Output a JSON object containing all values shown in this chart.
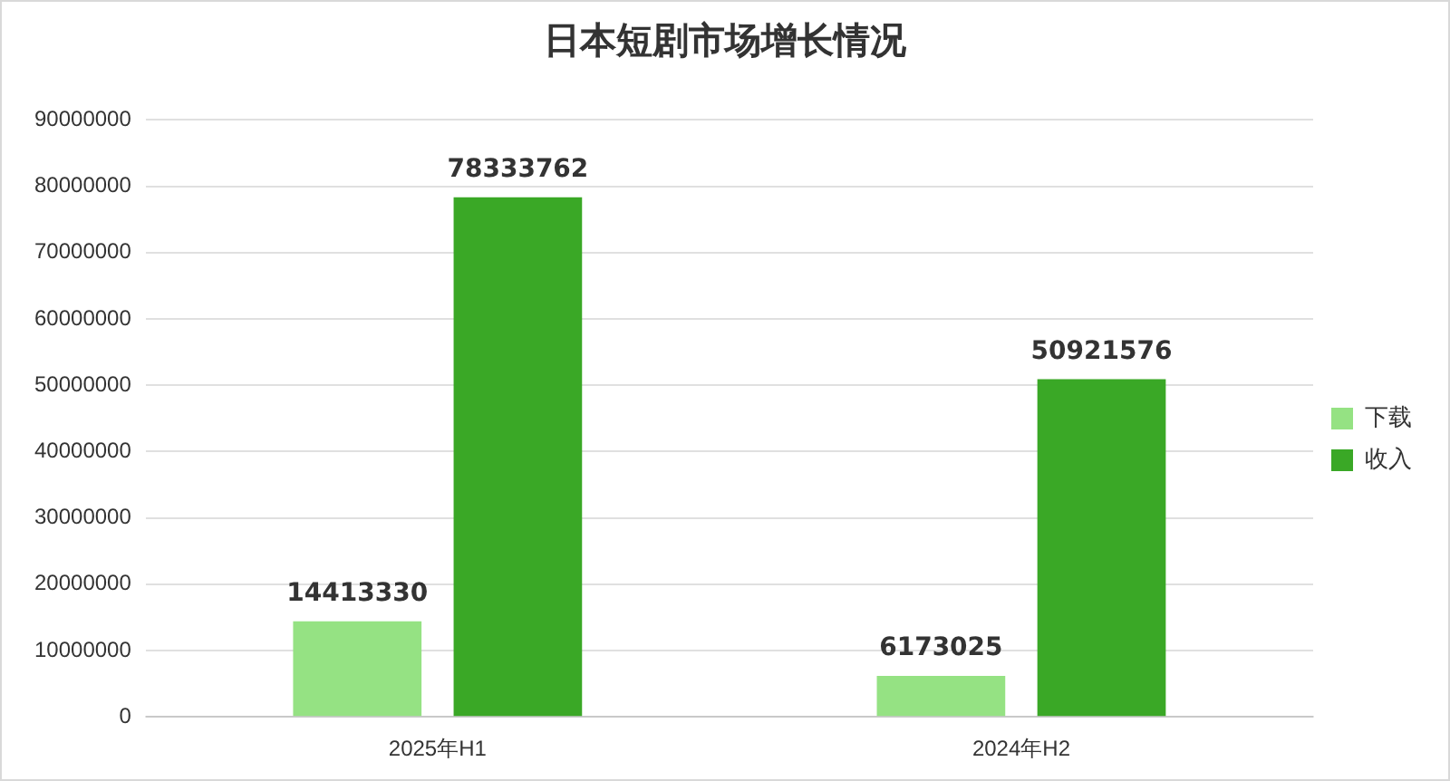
{
  "chart_data": {
    "type": "bar",
    "title": "日本短剧市场增长情况",
    "categories": [
      "2025年H1",
      "2024年H2"
    ],
    "series": [
      {
        "name": "下载",
        "color": "#95e283",
        "values": [
          14413330,
          6173025
        ]
      },
      {
        "name": "收入",
        "color": "#3aa826",
        "values": [
          78333762,
          50921576
        ]
      }
    ],
    "ylim": [
      0,
      90000000
    ],
    "yticks": [
      0,
      10000000,
      20000000,
      30000000,
      40000000,
      50000000,
      60000000,
      70000000,
      80000000,
      90000000
    ],
    "grid": "y",
    "legend": "right",
    "data_labels": true
  }
}
